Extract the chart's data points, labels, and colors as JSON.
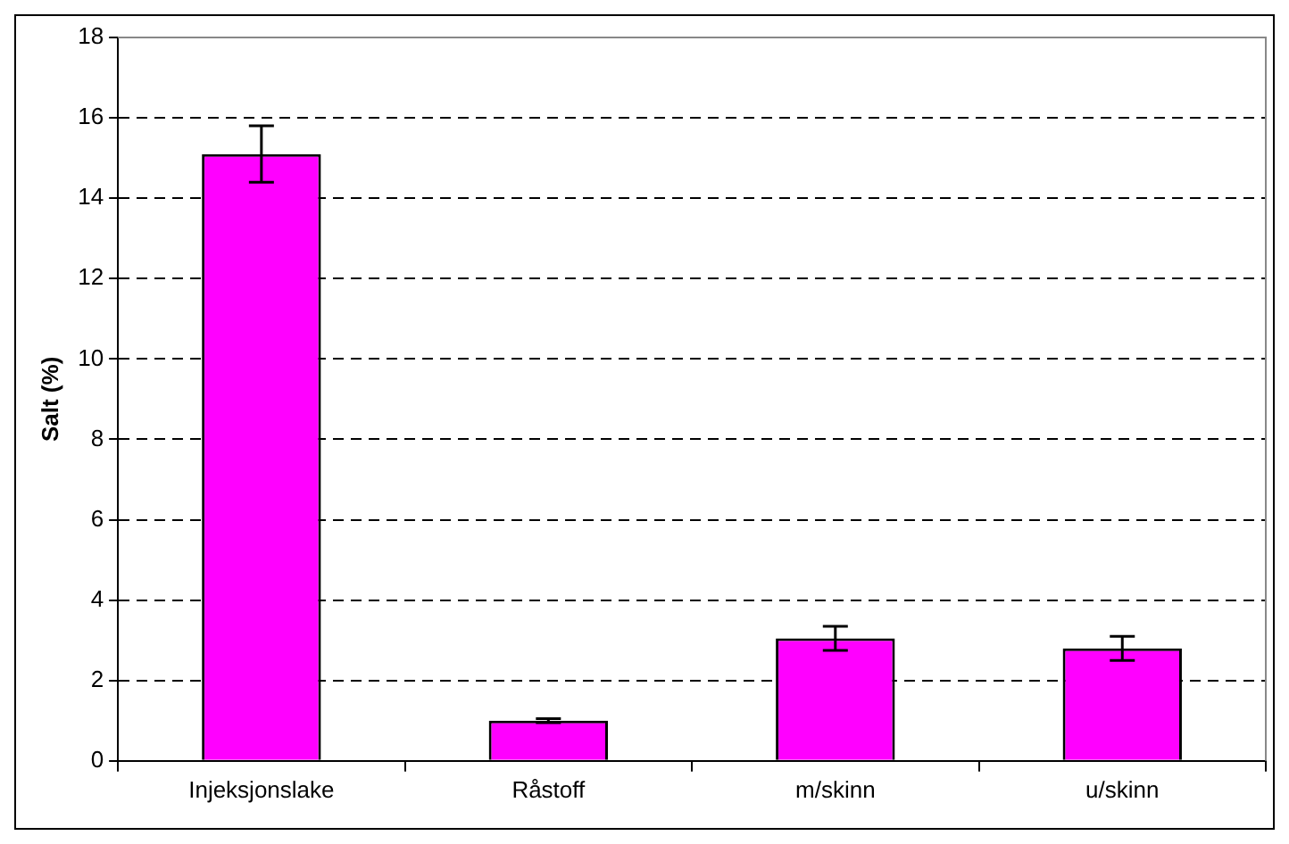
{
  "chart_data": {
    "type": "bar",
    "ylabel": "Salt (%)",
    "categories": [
      "Injeksjonslake",
      "Råstoff",
      "m/skinn",
      "u/skinn"
    ],
    "values": [
      15.1,
      1.0,
      3.05,
      2.8
    ],
    "errors": [
      0.7,
      0.05,
      0.3,
      0.3
    ],
    "color": "#ff00ff",
    "ylim": [
      0,
      18
    ],
    "yticks": [
      0,
      2,
      4,
      6,
      8,
      10,
      12,
      14,
      16,
      18
    ],
    "grid": "y"
  }
}
